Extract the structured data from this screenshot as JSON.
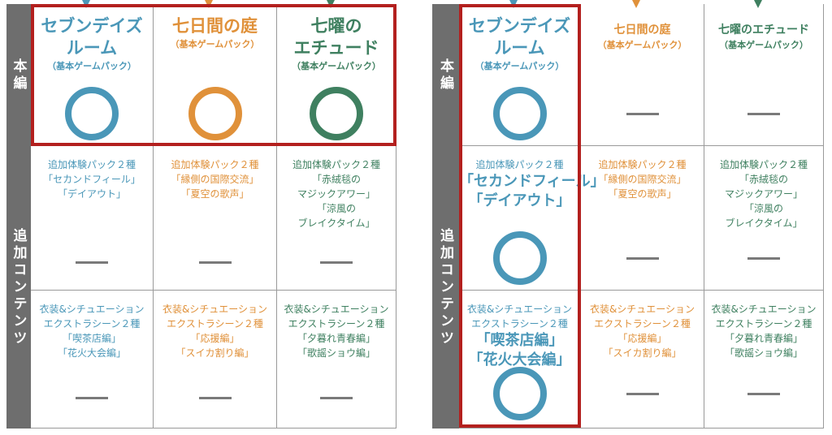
{
  "colors": {
    "blue": "#4a97b8",
    "orange": "#e0913a",
    "green": "#3f8060",
    "highlight": "#b3201e",
    "label_bg": "#6e6e6e"
  },
  "tables": [
    {
      "highlight": "main-row",
      "labels": {
        "main": "本編",
        "extra": "追加コンテンツ"
      },
      "columns": [
        {
          "color": "#4a97b8",
          "title": [
            "セブンデイズ",
            "ルーム"
          ],
          "subtitle": "（基本ゲームパック）",
          "title_small": false,
          "main_mark": "circle",
          "extra1": {
            "lines": [
              {
                "text": "追加体験パック２種"
              },
              {
                "text": "「セカンドフィール」"
              },
              {
                "text": "「デイアウト」"
              }
            ],
            "mark": "dash"
          },
          "extra2": {
            "lines": [
              {
                "text": "衣装&シチュエーション"
              },
              {
                "text": "エクストラシーン２種"
              },
              {
                "text": "「喫茶店編」"
              },
              {
                "text": "「花火大会編」"
              }
            ],
            "mark": "dash"
          }
        },
        {
          "color": "#e0913a",
          "title": [
            "七日間の庭"
          ],
          "subtitle": "（基本ゲームパック）",
          "title_small": false,
          "main_mark": "circle",
          "extra1": {
            "lines": [
              {
                "text": "追加体験パック２種"
              },
              {
                "text": "「縁側の国際交流」"
              },
              {
                "text": "「夏空の歌声」"
              }
            ],
            "mark": "dash"
          },
          "extra2": {
            "lines": [
              {
                "text": "衣装&シチュエーション"
              },
              {
                "text": "エクストラシーン２種"
              },
              {
                "text": "「応援編」"
              },
              {
                "text": "「スイカ割り編」"
              }
            ],
            "mark": "dash"
          }
        },
        {
          "color": "#3f8060",
          "title": [
            "七曜の",
            "エチュード"
          ],
          "subtitle": "（基本ゲームパック）",
          "title_small": false,
          "main_mark": "circle",
          "extra1": {
            "lines": [
              {
                "text": "追加体験パック２種"
              },
              {
                "text": "「赤絨毯の"
              },
              {
                "text": "マジックアワー」"
              },
              {
                "text": "「涼風の"
              },
              {
                "text": "ブレイクタイム」"
              }
            ],
            "mark": "dash"
          },
          "extra2": {
            "lines": [
              {
                "text": "衣装&シチュエーション"
              },
              {
                "text": "エクストラシーン２種"
              },
              {
                "text": "「夕暮れ青春編」"
              },
              {
                "text": "「歌謡ショウ編」"
              }
            ],
            "mark": "dash"
          }
        }
      ]
    },
    {
      "highlight": "first-column",
      "labels": {
        "main": "本編",
        "extra": "追加コンテンツ"
      },
      "columns": [
        {
          "color": "#4a97b8",
          "title": [
            "セブンデイズ",
            "ルーム"
          ],
          "subtitle": "（基本ゲームパック）",
          "title_small": false,
          "main_mark": "circle",
          "extra1": {
            "lines": [
              {
                "text": "追加体験パック２種"
              },
              {
                "text": "「セカンドフィール」",
                "emphasis": true
              },
              {
                "text": "「デイアウト」",
                "emphasis": true
              }
            ],
            "mark": "circle"
          },
          "extra2": {
            "lines": [
              {
                "text": "衣装&シチュエーション"
              },
              {
                "text": "エクストラシーン２種"
              },
              {
                "text": "「喫茶店編」",
                "emphasis": true
              },
              {
                "text": "「花火大会編」",
                "emphasis": true
              }
            ],
            "mark": "circle"
          }
        },
        {
          "color": "#e0913a",
          "title": [
            "七日間の庭"
          ],
          "subtitle": "（基本ゲームパック）",
          "title_small": true,
          "main_mark": "dash",
          "extra1": {
            "lines": [
              {
                "text": "追加体験パック２種"
              },
              {
                "text": "「縁側の国際交流」"
              },
              {
                "text": "「夏空の歌声」"
              }
            ],
            "mark": "dash"
          },
          "extra2": {
            "lines": [
              {
                "text": "衣装&シチュエーション"
              },
              {
                "text": "エクストラシーン２種"
              },
              {
                "text": "「応援編」"
              },
              {
                "text": "「スイカ割り編」"
              }
            ],
            "mark": "dash"
          }
        },
        {
          "color": "#3f8060",
          "title": [
            "七曜のエチュード"
          ],
          "subtitle": "（基本ゲームパック）",
          "title_small": true,
          "main_mark": "dash",
          "extra1": {
            "lines": [
              {
                "text": "追加体験パック２種"
              },
              {
                "text": "「赤絨毯の"
              },
              {
                "text": "マジックアワー」"
              },
              {
                "text": "「涼風の"
              },
              {
                "text": "ブレイクタイム」"
              }
            ],
            "mark": "dash"
          },
          "extra2": {
            "lines": [
              {
                "text": "衣装&シチュエーション"
              },
              {
                "text": "エクストラシーン２種"
              },
              {
                "text": "「夕暮れ青春編」"
              },
              {
                "text": "「歌謡ショウ編」"
              }
            ],
            "mark": "dash"
          }
        }
      ]
    }
  ]
}
